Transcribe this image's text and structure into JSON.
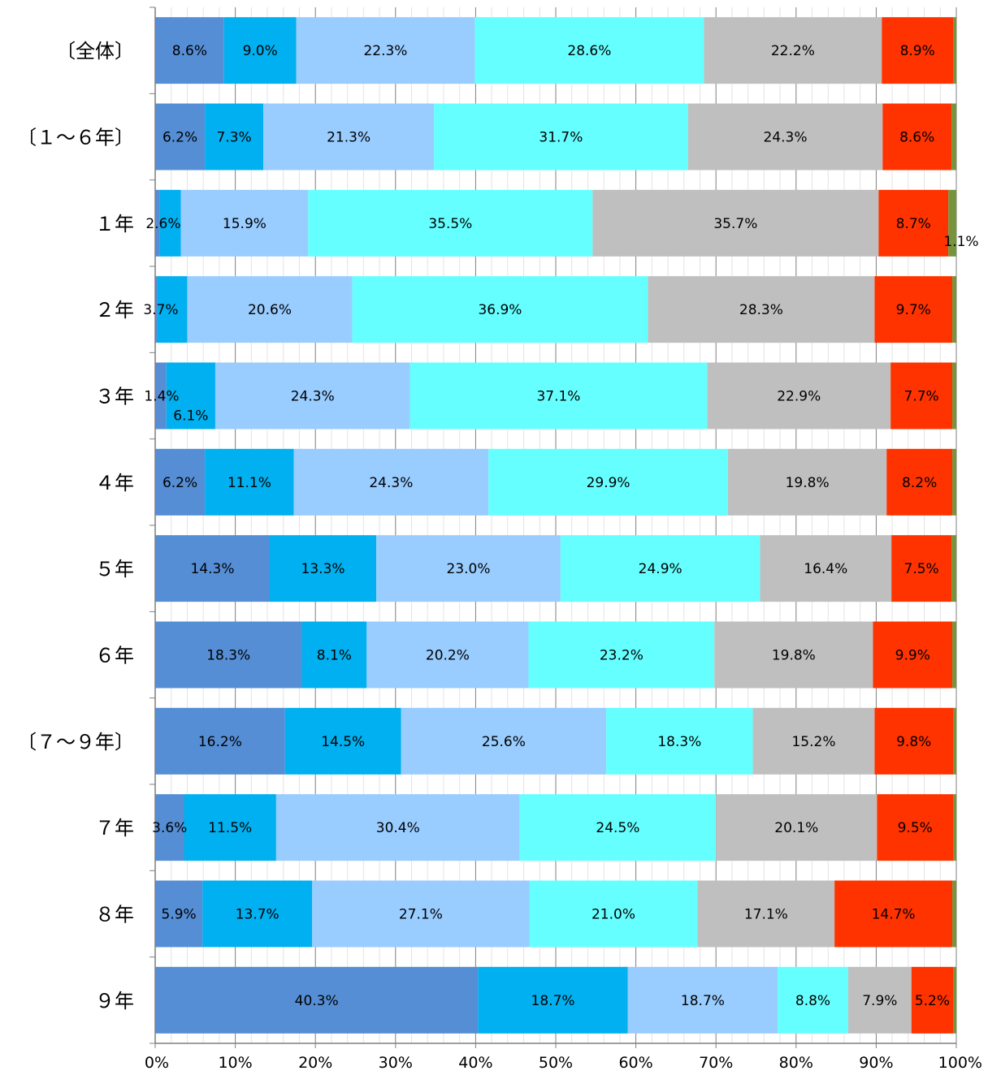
{
  "chart_data": {
    "type": "bar",
    "orientation": "horizontal",
    "stacked": "percent",
    "categories": [
      "〔全体〕",
      "〔１～６年〕",
      "１年",
      "２年",
      "３年",
      "４年",
      "５年",
      "６年",
      "〔７～９年〕",
      "７年",
      "８年",
      "９年"
    ],
    "x_ticks": [
      "0%",
      "10%",
      "20%",
      "30%",
      "40%",
      "50%",
      "60%",
      "70%",
      "80%",
      "90%",
      "100%"
    ],
    "xlim": [
      0,
      100
    ],
    "grid": true,
    "legend": "none",
    "series": [
      {
        "color": "#558ED5",
        "values": [
          8.6,
          6.2,
          0.6,
          0.3,
          1.4,
          6.2,
          14.3,
          18.3,
          16.2,
          3.6,
          5.9,
          40.3
        ],
        "labels": [
          "8.6%",
          "6.2%",
          "",
          "",
          "1.4%",
          "6.2%",
          "14.3%",
          "18.3%",
          "16.2%",
          "3.6%",
          "5.9%",
          "40.3%"
        ]
      },
      {
        "color": "#00B0F0",
        "values": [
          9.0,
          7.3,
          2.6,
          3.7,
          6.1,
          11.1,
          13.3,
          8.1,
          14.5,
          11.5,
          13.7,
          18.7
        ],
        "labels": [
          "9.0%",
          "7.3%",
          "2.6%",
          "3.7%",
          "6.1%",
          "11.1%",
          "13.3%",
          "8.1%",
          "14.5%",
          "11.5%",
          "13.7%",
          "18.7%"
        ]
      },
      {
        "color": "#99CCFF",
        "values": [
          22.3,
          21.3,
          15.9,
          20.6,
          24.3,
          24.3,
          23.0,
          20.2,
          25.6,
          30.4,
          27.1,
          18.7
        ],
        "labels": [
          "22.3%",
          "21.3%",
          "15.9%",
          "20.6%",
          "24.3%",
          "24.3%",
          "23.0%",
          "20.2%",
          "25.6%",
          "30.4%",
          "27.1%",
          "18.7%"
        ]
      },
      {
        "color": "#66FFFF",
        "values": [
          28.6,
          31.7,
          35.5,
          36.9,
          37.1,
          29.9,
          24.9,
          23.2,
          18.3,
          24.5,
          21.0,
          8.8
        ],
        "labels": [
          "28.6%",
          "31.7%",
          "35.5%",
          "36.9%",
          "37.1%",
          "29.9%",
          "24.9%",
          "23.2%",
          "18.3%",
          "24.5%",
          "21.0%",
          "8.8%"
        ]
      },
      {
        "color": "#BFBFBF",
        "values": [
          22.2,
          24.3,
          35.7,
          28.3,
          22.9,
          19.8,
          16.4,
          19.8,
          15.2,
          20.1,
          17.1,
          7.9
        ],
        "labels": [
          "22.2%",
          "24.3%",
          "35.7%",
          "28.3%",
          "22.9%",
          "19.8%",
          "16.4%",
          "19.8%",
          "15.2%",
          "20.1%",
          "17.1%",
          "7.9%"
        ]
      },
      {
        "color": "#FF3300",
        "values": [
          8.9,
          8.6,
          8.7,
          9.7,
          7.7,
          8.2,
          7.5,
          9.9,
          9.8,
          9.5,
          14.7,
          5.2
        ],
        "labels": [
          "8.9%",
          "8.6%",
          "8.7%",
          "9.7%",
          "7.7%",
          "8.2%",
          "7.5%",
          "9.9%",
          "9.8%",
          "9.5%",
          "14.7%",
          "5.2%"
        ]
      },
      {
        "color": "#77933C",
        "values": [
          0.4,
          0.6,
          1.1,
          0.5,
          0.5,
          0.5,
          0.6,
          0.5,
          0.4,
          0.4,
          0.5,
          0.4
        ],
        "labels": [
          "",
          "",
          "1.1%",
          "",
          "",
          "",
          "",
          "",
          "",
          "",
          "",
          ""
        ]
      }
    ]
  }
}
